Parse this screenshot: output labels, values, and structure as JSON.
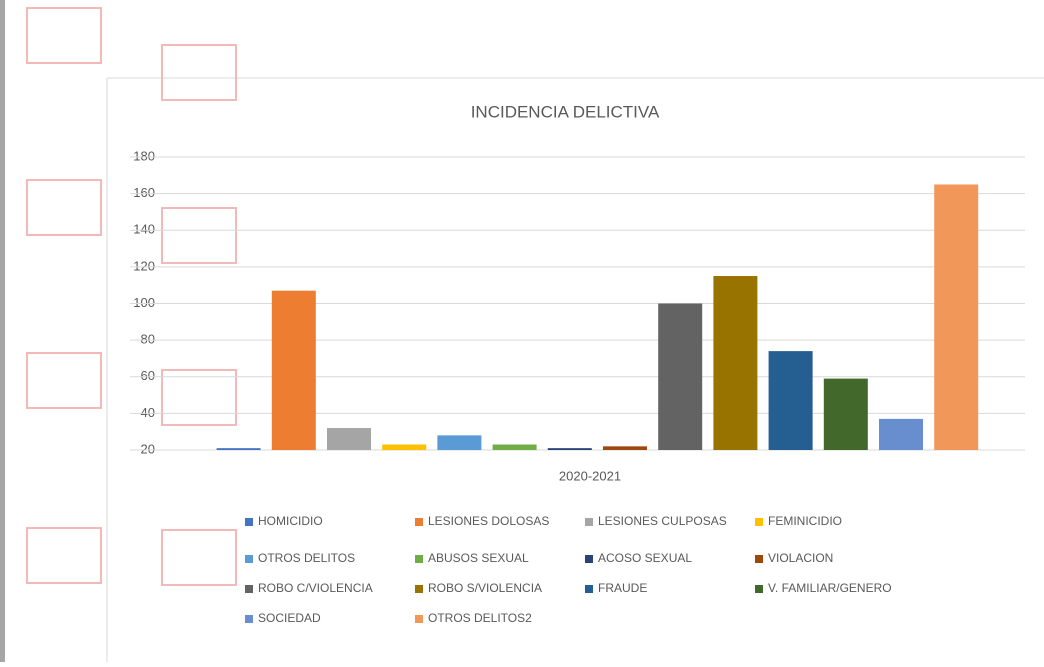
{
  "chart_data": {
    "type": "bar",
    "title": "INCIDENCIA DELICTIVA",
    "categories": [
      "2020-2021"
    ],
    "series": [
      {
        "name": "HOMICIDIO",
        "color": "#4472c4",
        "values": [
          21
        ]
      },
      {
        "name": "LESIONES DOLOSAS",
        "color": "#ed7d31",
        "values": [
          107
        ]
      },
      {
        "name": "LESIONES CULPOSAS",
        "color": "#a5a5a5",
        "values": [
          32
        ]
      },
      {
        "name": "FEMINICIDIO",
        "color": "#ffc000",
        "values": [
          23
        ]
      },
      {
        "name": "OTROS DELITOS",
        "color": "#5b9bd5",
        "values": [
          28
        ]
      },
      {
        "name": "ABUSOS SEXUAL",
        "color": "#70ad47",
        "values": [
          23
        ]
      },
      {
        "name": "ACOSO SEXUAL",
        "color": "#264478",
        "values": [
          21
        ]
      },
      {
        "name": "VIOLACION",
        "color": "#9e480e",
        "values": [
          22
        ]
      },
      {
        "name": "ROBO C/VIOLENCIA",
        "color": "#636363",
        "values": [
          100
        ]
      },
      {
        "name": "ROBO S/VIOLENCIA",
        "color": "#997300",
        "values": [
          115
        ]
      },
      {
        "name": "FRAUDE",
        "color": "#255e91",
        "values": [
          74
        ]
      },
      {
        "name": "V. FAMILIAR/GENERO",
        "color": "#43682b",
        "values": [
          59
        ]
      },
      {
        "name": "SOCIEDAD",
        "color": "#698ed0",
        "values": [
          37
        ]
      },
      {
        "name": "OTROS DELITOS2",
        "color": "#f1975a",
        "values": [
          165
        ]
      }
    ],
    "ylim": [
      20,
      180
    ],
    "yticks": [
      20,
      40,
      60,
      80,
      100,
      120,
      140,
      160,
      180
    ],
    "grid": true
  }
}
